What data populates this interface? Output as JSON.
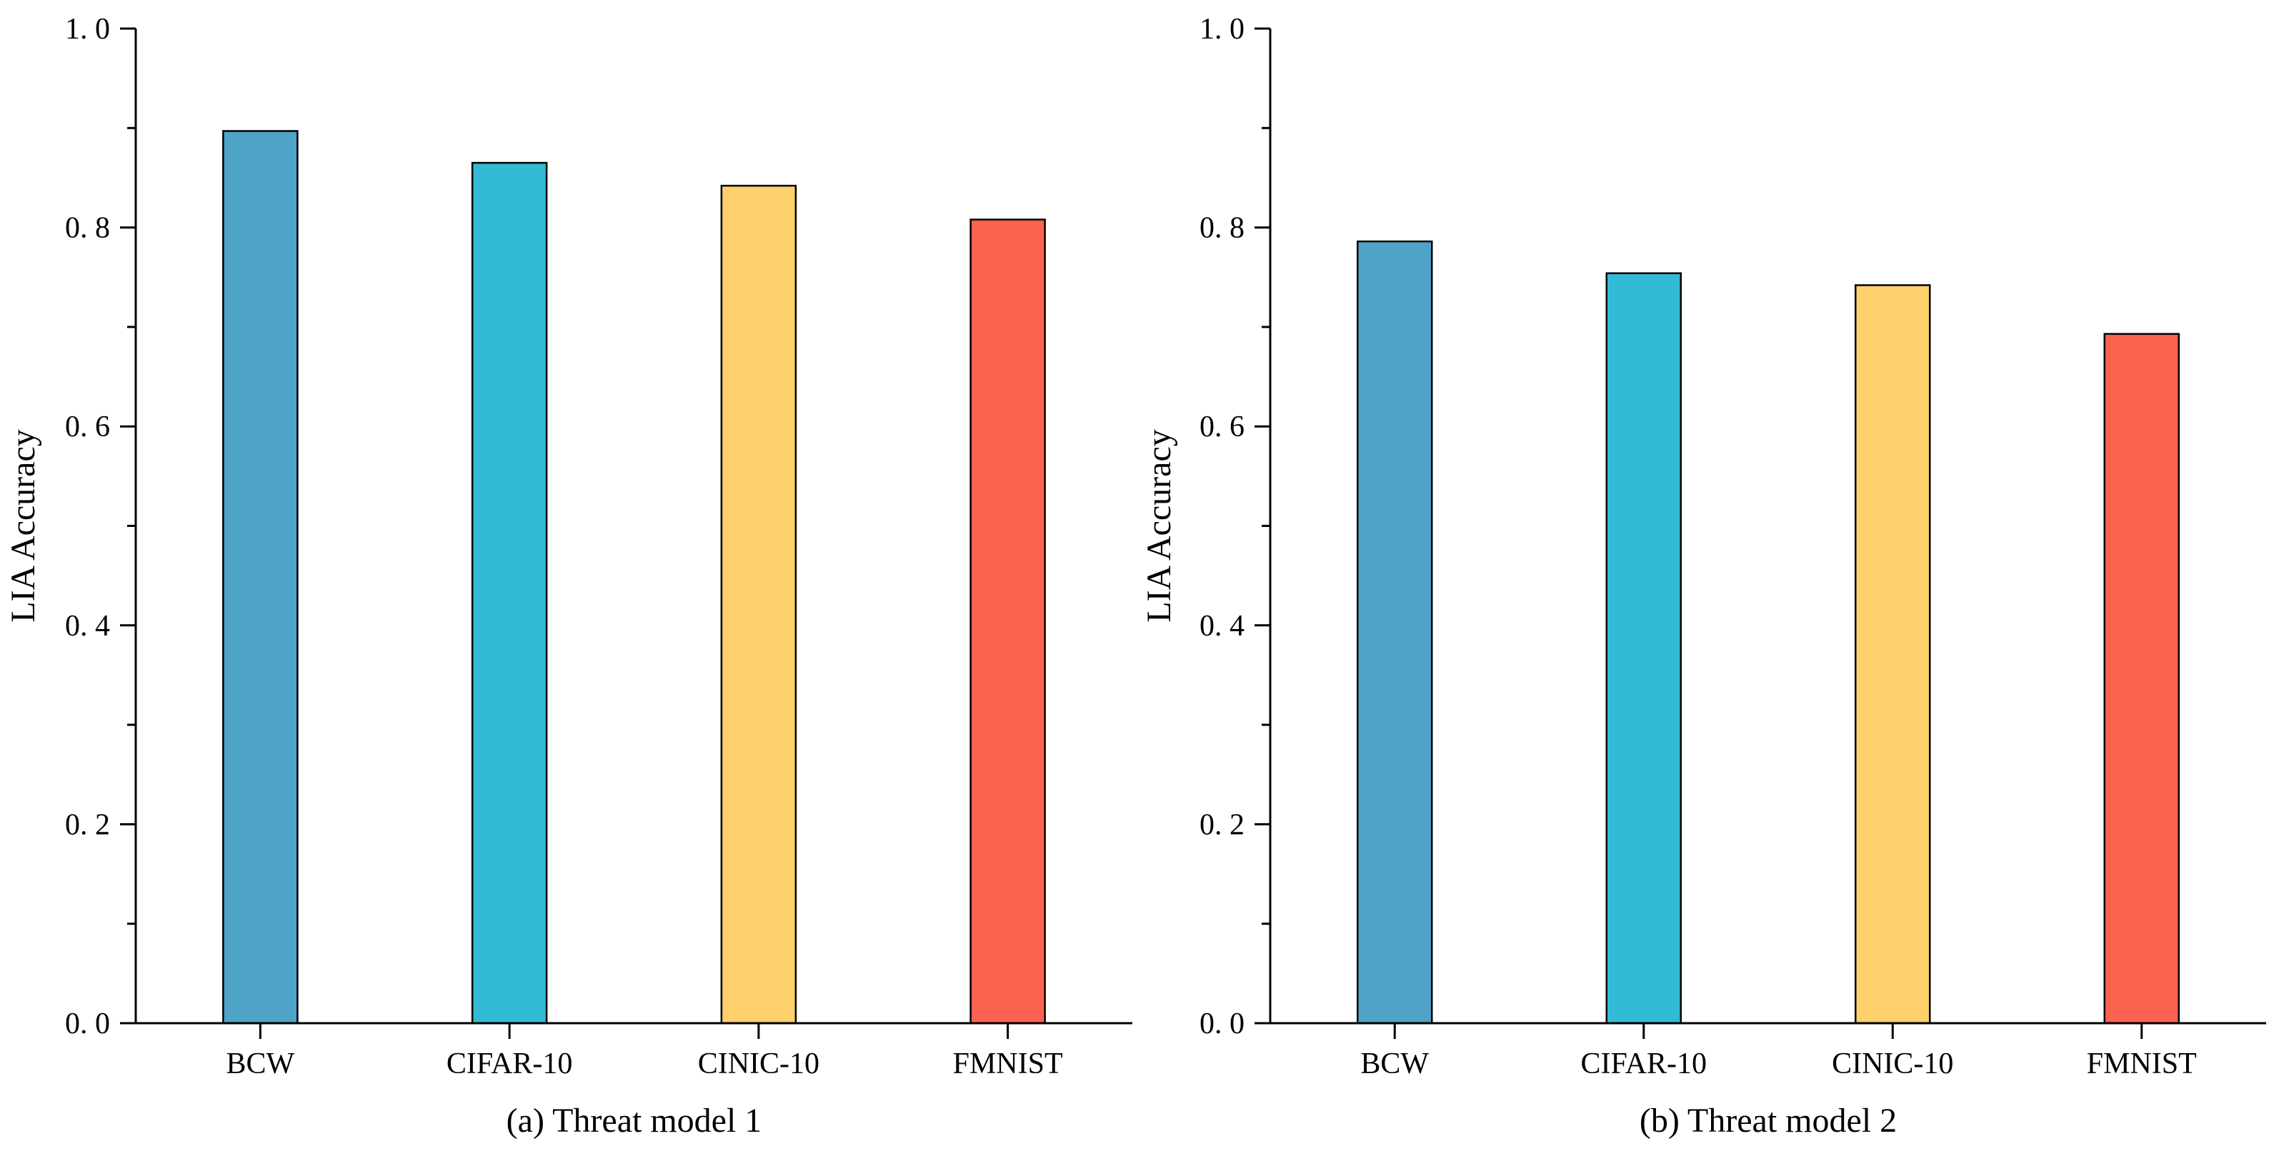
{
  "chart_data": [
    {
      "type": "bar",
      "caption": "(a) Threat model 1",
      "ylabel": "LIA Accuracy",
      "ylim": [
        0,
        1.0
      ],
      "yticks": [
        "0. 0",
        "0. 2",
        "0. 4",
        "0. 6",
        "0. 8",
        "1. 0"
      ],
      "categories": [
        "BCW",
        "CIFAR-10",
        "CINIC-10",
        "FMNIST"
      ],
      "values": [
        0.897,
        0.865,
        0.842,
        0.808
      ],
      "colors": [
        "#4FA3C7",
        "#33BBD6",
        "#FDD06B",
        "#FD6150"
      ],
      "grid": false
    },
    {
      "type": "bar",
      "caption": "(b) Threat model 2",
      "ylabel": "LIA Accuracy",
      "ylim": [
        0,
        1.0
      ],
      "yticks": [
        "0. 0",
        "0. 2",
        "0. 4",
        "0. 6",
        "0. 8",
        "1. 0"
      ],
      "categories": [
        "BCW",
        "CIFAR-10",
        "CINIC-10",
        "FMNIST"
      ],
      "values": [
        0.786,
        0.754,
        0.742,
        0.693
      ],
      "colors": [
        "#4FA3C7",
        "#33BBD6",
        "#FDD06B",
        "#FD6150"
      ],
      "grid": false
    }
  ]
}
